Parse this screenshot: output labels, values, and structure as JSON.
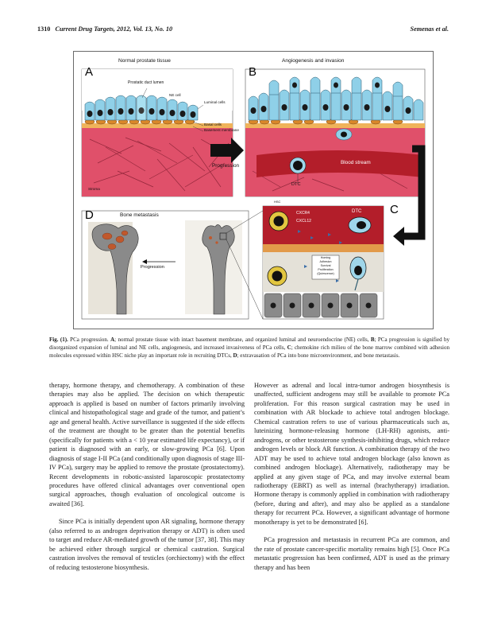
{
  "header": {
    "page_number": "1310",
    "journal": "Current Drug Targets, 2012, Vol. 13, No. 10",
    "authors": "Semenas et al."
  },
  "figure": {
    "panel_a": {
      "letter": "A",
      "title": "Normal prostate tissue",
      "labels": {
        "lumen": "Prostatic duct lumen",
        "ne_cell": "NE cell",
        "luminal_cells": "Luminal cells",
        "basal_cells": "Basal cells",
        "basement_membrane": "Basement membrane",
        "stroma": "Stroma"
      }
    },
    "panel_b": {
      "letter": "B",
      "title": "Angiogenesis and invasion",
      "labels": {
        "blood_stream": "Blood stream",
        "dtc": "DTC"
      }
    },
    "panel_c": {
      "letter": "C",
      "labels": {
        "hsc": "HSC",
        "cxcr4": "CXCR4",
        "cxcl12": "CXCL12",
        "dtc": "DTC",
        "box_lines": [
          "Homing",
          "Adhesion",
          "Survival",
          "Proliferation",
          "(Quiescence)"
        ]
      }
    },
    "panel_d": {
      "letter": "D",
      "title": "Bone metastasis",
      "progression": "Progression"
    },
    "progression_label": "Progression",
    "colors": {
      "stroma": "#e0506a",
      "luminal": "#8fd0e8",
      "basal": "#e29a30",
      "blood": "#b31e2a",
      "bone": "#8a8a8a",
      "hsc": "#e2c640"
    }
  },
  "caption": {
    "label": "Fig. (1).",
    "segments": [
      {
        "t": " PCa progression. ",
        "b": false
      },
      {
        "t": "A",
        "b": true
      },
      {
        "t": "; normal prostate tissue with intact basement membrane, and organized luminal and neuroendocrine (NE) cells, ",
        "b": false
      },
      {
        "t": "B",
        "b": true
      },
      {
        "t": "; PCa progression is signified by disorganized expansion of luminal and NE cells, angiogenesis, and increased invasiveness of PCa cells, ",
        "b": false
      },
      {
        "t": "C",
        "b": true
      },
      {
        "t": "; chemokine rich milieu of the bone marrow combined with adhesion molecules expressed within HSC niche play an important role in recruiting DTCs, ",
        "b": false
      },
      {
        "t": "D",
        "b": true
      },
      {
        "t": "; extravasation of PCa into bone microenvironment, and bone metastasis.",
        "b": false
      }
    ]
  },
  "body": {
    "col1": [
      "therapy, hormone therapy, and chemotherapy. A combination of these therapies may also be applied. The decision on which therapeutic approach is applied is based on number of factors primarily involving clinical and histopathological stage and grade of the tumor, and patient’s age and general health. Active surveillance is suggested if the side effects of the treatment are thought to be greater than the potential benefits (specifically for patients with a < 10 year estimated life expectancy), or if patient is diagnosed with an early, or slow-growing PCa [6]. Upon diagnosis of stage I-II PCa (and conditionally upon diagnosis of stage III-IV PCa), surgery may be applied to remove the prostate (prostatectomy). Recent developments in robotic-assisted laparoscopic prostatectomy procedures have offered clinical advantages over conventional open surgical approaches, though evaluation of oncological outcome is awaited [36].",
      "Since PCa is initially dependent upon AR signaling, hormone therapy (also referred to as androgen deprivation therapy or ADT) is often used to target and reduce AR-mediated growth of the tumor [37, 38]. This may be achieved either through surgical or chemical castration. Surgical castration involves the removal of testicles (orchiectomy) with the effect of reducing testosterone biosynthesis."
    ],
    "col2": [
      "However as adrenal and local intra-tumor androgen biosynthesis is unaffected, sufficient androgens may still be available to promote PCa proliferation. For this reason surgical castration may be used in combination with AR blockade to achieve total androgen blockage. Chemical castration refers to use of various pharmaceuticals such as, luteinizing hormone-releasing hormone (LH-RH) agonists, anti-androgens, or other testosterone synthesis-inhibiting drugs, which reduce androgen levels or block AR function. A combination therapy of the two ADT may be used to achieve total androgen blockage (also known as combined androgen blockage). Alternatively, radiotherapy may be applied at any given stage of PCa, and may involve external beam radiotherapy (EBRT) as well as internal (brachytherapy) irradiation. Hormone therapy is commonly applied in combination with radiotherapy (before, during and after), and may also be applied as a standalone therapy for recurrent PCa. However, a significant advantage of hormone monotherapy is yet to be demonstrated [6].",
      "PCa progression and metastasis in recurrent PCa are common, and the rate of prostate cancer-specific mortality remains high [5]. Once PCa metastatic progression has been confirmed, ADT is used as the primary therapy and has been"
    ]
  }
}
